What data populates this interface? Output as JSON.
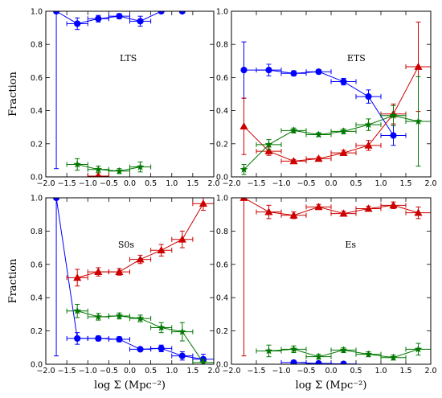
{
  "chart_data": [
    {
      "type": "line",
      "annotation": "LTS",
      "ylabel": "Fraction",
      "xlabel": "",
      "xlim": [
        -2.0,
        2.0
      ],
      "ylim": [
        0.0,
        1.0
      ],
      "xticks": [
        "−2.0",
        "−1.5",
        "−1.0",
        "−0.5",
        "0.0",
        "0.5",
        "1.0",
        "1.5",
        "2.0"
      ],
      "yticks": [
        "0.0",
        "0.2",
        "0.4",
        "0.6",
        "0.8",
        "1.0"
      ],
      "series": [
        {
          "color": "#0000ff",
          "marker": "circle",
          "x": [
            -1.75,
            -1.25,
            -0.75,
            -0.25,
            0.25,
            0.75,
            1.25
          ],
          "y": [
            1.0,
            0.925,
            0.955,
            0.97,
            0.94,
            1.0,
            1.0
          ],
          "yerr": [
            0.95,
            0.035,
            0.02,
            0.015,
            0.03,
            0.0,
            0.0
          ],
          "xerr": [
            0.0,
            0.25,
            0.25,
            0.25,
            0.25,
            0.0,
            0.0
          ]
        },
        {
          "color": "#007700",
          "marker": "star",
          "x": [
            -1.25,
            -0.75,
            -0.25,
            0.25
          ],
          "y": [
            0.075,
            0.045,
            0.035,
            0.06
          ],
          "yerr": [
            0.035,
            0.02,
            0.015,
            0.03
          ],
          "xerr": [
            0.25,
            0.25,
            0.25,
            0.25
          ]
        },
        {
          "color": "#cc0000",
          "marker": "triangle",
          "x": [
            -0.75
          ],
          "y": [
            0.005
          ],
          "yerr": [
            0.005
          ],
          "xerr": [
            0.25
          ]
        }
      ]
    },
    {
      "type": "line",
      "annotation": "ETS",
      "ylabel": "",
      "xlabel": "",
      "xlim": [
        -2.0,
        2.0
      ],
      "ylim": [
        0.0,
        1.0
      ],
      "xticks": [
        "−2.0",
        "−1.5",
        "−1.0",
        "−0.5",
        "0.0",
        "0.5",
        "1.0",
        "1.5",
        "2.0"
      ],
      "yticks": [
        "0.0",
        "0.2",
        "0.4",
        "0.6",
        "0.8",
        "1.0"
      ],
      "series": [
        {
          "color": "#0000ff",
          "marker": "circle",
          "x": [
            -1.75,
            -1.25,
            -0.75,
            -0.25,
            0.25,
            0.75,
            1.25
          ],
          "y": [
            0.645,
            0.645,
            0.625,
            0.635,
            0.575,
            0.485,
            0.25
          ],
          "yerr": [
            0.17,
            0.035,
            0.015,
            0.012,
            0.02,
            0.04,
            0.06
          ],
          "xerr": [
            0.0,
            0.25,
            0.25,
            0.25,
            0.25,
            0.25,
            0.25
          ]
        },
        {
          "color": "#cc0000",
          "marker": "triangle",
          "x": [
            -1.75,
            -1.25,
            -0.75,
            -0.25,
            0.25,
            0.75,
            1.25,
            1.75
          ],
          "y": [
            0.305,
            0.155,
            0.095,
            0.11,
            0.145,
            0.19,
            0.38,
            0.665
          ],
          "yerr": [
            0.17,
            0.025,
            0.01,
            0.01,
            0.015,
            0.03,
            0.06,
            0.27
          ],
          "xerr": [
            0.0,
            0.25,
            0.25,
            0.25,
            0.25,
            0.25,
            0.25,
            0.25
          ]
        },
        {
          "color": "#007700",
          "marker": "star",
          "x": [
            -1.75,
            -1.25,
            -0.75,
            -0.25,
            0.25,
            0.75,
            1.25,
            1.75
          ],
          "y": [
            0.045,
            0.195,
            0.28,
            0.255,
            0.275,
            0.315,
            0.37,
            0.335
          ],
          "yerr": [
            0.03,
            0.03,
            0.015,
            0.012,
            0.015,
            0.035,
            0.06,
            0.27
          ],
          "xerr": [
            0.0,
            0.25,
            0.25,
            0.25,
            0.25,
            0.25,
            0.25,
            0.25
          ]
        }
      ]
    },
    {
      "type": "line",
      "annotation": "S0s",
      "ylabel": "Fraction",
      "xlabel": "log Σ (Mpc⁻²)",
      "xlim": [
        -2.0,
        2.0
      ],
      "ylim": [
        0.0,
        1.0
      ],
      "xticks": [
        "−2.0",
        "−1.5",
        "−1.0",
        "−0.5",
        "0.0",
        "0.5",
        "1.0",
        "1.5",
        "2.0"
      ],
      "yticks": [
        "0.0",
        "0.2",
        "0.4",
        "0.6",
        "0.8",
        "1.0"
      ],
      "series": [
        {
          "color": "#0000ff",
          "marker": "circle",
          "x": [
            -1.75,
            -1.25,
            -0.75,
            -0.25,
            0.25,
            0.75,
            1.25,
            1.75
          ],
          "y": [
            1.0,
            0.155,
            0.155,
            0.15,
            0.09,
            0.095,
            0.05,
            0.03
          ],
          "yerr": [
            0.95,
            0.035,
            0.015,
            0.015,
            0.01,
            0.02,
            0.025,
            0.03
          ],
          "xerr": [
            0.0,
            0.25,
            0.25,
            0.25,
            0.25,
            0.25,
            0.25,
            0.25
          ]
        },
        {
          "color": "#cc0000",
          "marker": "triangle",
          "x": [
            -1.25,
            -0.75,
            -0.25,
            0.25,
            0.75,
            1.25,
            1.75
          ],
          "y": [
            0.52,
            0.555,
            0.555,
            0.63,
            0.685,
            0.75,
            0.965
          ],
          "yerr": [
            0.05,
            0.025,
            0.02,
            0.025,
            0.035,
            0.05,
            0.04
          ],
          "xerr": [
            0.25,
            0.25,
            0.25,
            0.25,
            0.25,
            0.25,
            0.25
          ]
        },
        {
          "color": "#007700",
          "marker": "star",
          "x": [
            -1.25,
            -0.75,
            -0.25,
            0.25,
            0.75,
            1.25,
            1.75
          ],
          "y": [
            0.32,
            0.285,
            0.29,
            0.275,
            0.22,
            0.195,
            0.01
          ],
          "yerr": [
            0.04,
            0.02,
            0.018,
            0.02,
            0.03,
            0.055,
            0.02
          ],
          "xerr": [
            0.25,
            0.25,
            0.25,
            0.25,
            0.25,
            0.25,
            0.25
          ]
        }
      ]
    },
    {
      "type": "line",
      "annotation": "Es",
      "ylabel": "",
      "xlabel": "log Σ (Mpc⁻²)",
      "xlim": [
        -2.0,
        2.0
      ],
      "ylim": [
        0.0,
        1.0
      ],
      "xticks": [
        "−2.0",
        "−1.5",
        "−1.0",
        "−0.5",
        "0.0",
        "0.5",
        "1.0",
        "1.5",
        "2.0"
      ],
      "yticks": [
        "0.0",
        "0.2",
        "0.4",
        "0.6",
        "0.8",
        "1.0"
      ],
      "series": [
        {
          "color": "#cc0000",
          "marker": "triangle",
          "x": [
            -1.75,
            -1.25,
            -0.75,
            -0.25,
            0.25,
            0.75,
            1.25,
            1.75
          ],
          "y": [
            1.0,
            0.915,
            0.895,
            0.945,
            0.905,
            0.935,
            0.955,
            0.91
          ],
          "yerr": [
            0.95,
            0.04,
            0.02,
            0.015,
            0.015,
            0.015,
            0.02,
            0.035
          ],
          "xerr": [
            0.0,
            0.25,
            0.25,
            0.25,
            0.25,
            0.25,
            0.25,
            0.25
          ]
        },
        {
          "color": "#007700",
          "marker": "star",
          "x": [
            -1.25,
            -0.75,
            -0.25,
            0.25,
            0.75,
            1.25,
            1.75
          ],
          "y": [
            0.08,
            0.09,
            0.045,
            0.085,
            0.06,
            0.04,
            0.09
          ],
          "yerr": [
            0.035,
            0.02,
            0.015,
            0.015,
            0.015,
            0.015,
            0.035
          ],
          "xerr": [
            0.25,
            0.25,
            0.25,
            0.25,
            0.25,
            0.25,
            0.25
          ]
        },
        {
          "color": "#0000ff",
          "marker": "circle",
          "x": [
            -0.75,
            -0.25,
            0.25
          ],
          "y": [
            0.01,
            0.005,
            0.002
          ],
          "yerr": [
            0.005,
            0.003,
            0.002
          ],
          "xerr": [
            0.25,
            0.25,
            0.25
          ]
        }
      ]
    }
  ]
}
